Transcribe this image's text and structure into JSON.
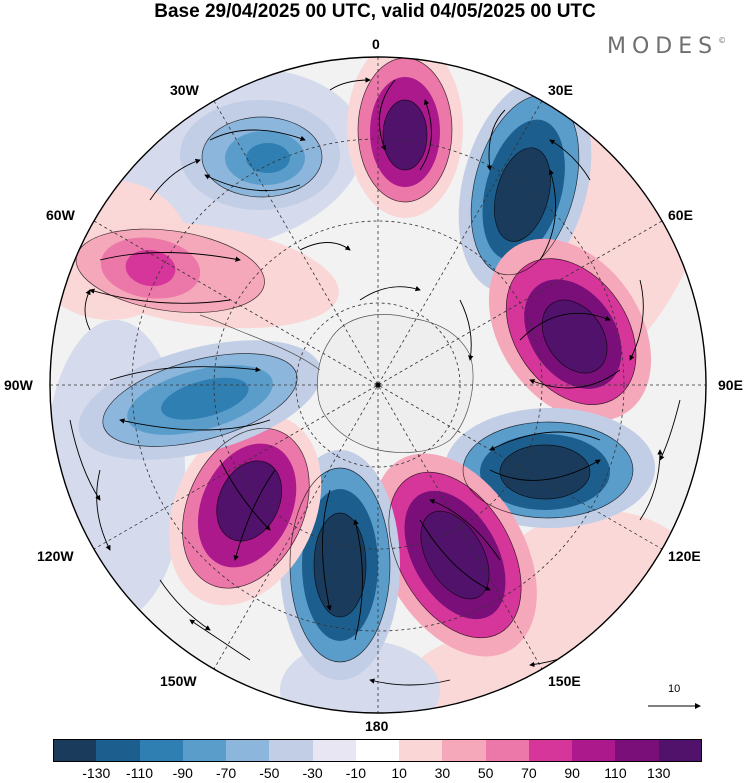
{
  "title": "Base 29/04/2025 00 UTC, valid 04/05/2025 00 UTC",
  "logo": "MODES",
  "logo_mark": "©",
  "longitude_labels": {
    "n": "0",
    "e30": "30E",
    "e60": "60E",
    "e90": "90E",
    "e120": "120E",
    "e150": "150E",
    "s": "180",
    "w150": "150W",
    "w120": "120W",
    "w90": "90W",
    "w60": "60W",
    "w30": "30W"
  },
  "reference_vector": {
    "label": "10"
  },
  "colorbar": {
    "ticks": [
      "-130",
      "-110",
      "-90",
      "-70",
      "-50",
      "-30",
      "-10",
      "10",
      "30",
      "50",
      "70",
      "90",
      "110",
      "130"
    ],
    "colors": [
      "#1a3b5c",
      "#1c5e8d",
      "#2f7fb3",
      "#5a9dcb",
      "#8db6dc",
      "#c2cde6",
      "#e8e6f2",
      "#ffffff",
      "#fbd6d6",
      "#f6a8bb",
      "#ec77a9",
      "#d6369a",
      "#ac198c",
      "#7a0f7a",
      "#50126a"
    ]
  },
  "map": {
    "projection": "polar stereographic (south pole centered)",
    "field_colors": {
      "neg_strong": "#1a3b5c",
      "neg_mid": "#2f7fb3",
      "neg_weak": "#8db6dc",
      "neg_faint": "#d3d9ec",
      "pos_strong": "#50126a",
      "pos_mid": "#ac198c",
      "pos_weak": "#ec77a9",
      "pos_faint": "#fbd6d6",
      "neutral": "#eeeeee"
    }
  }
}
